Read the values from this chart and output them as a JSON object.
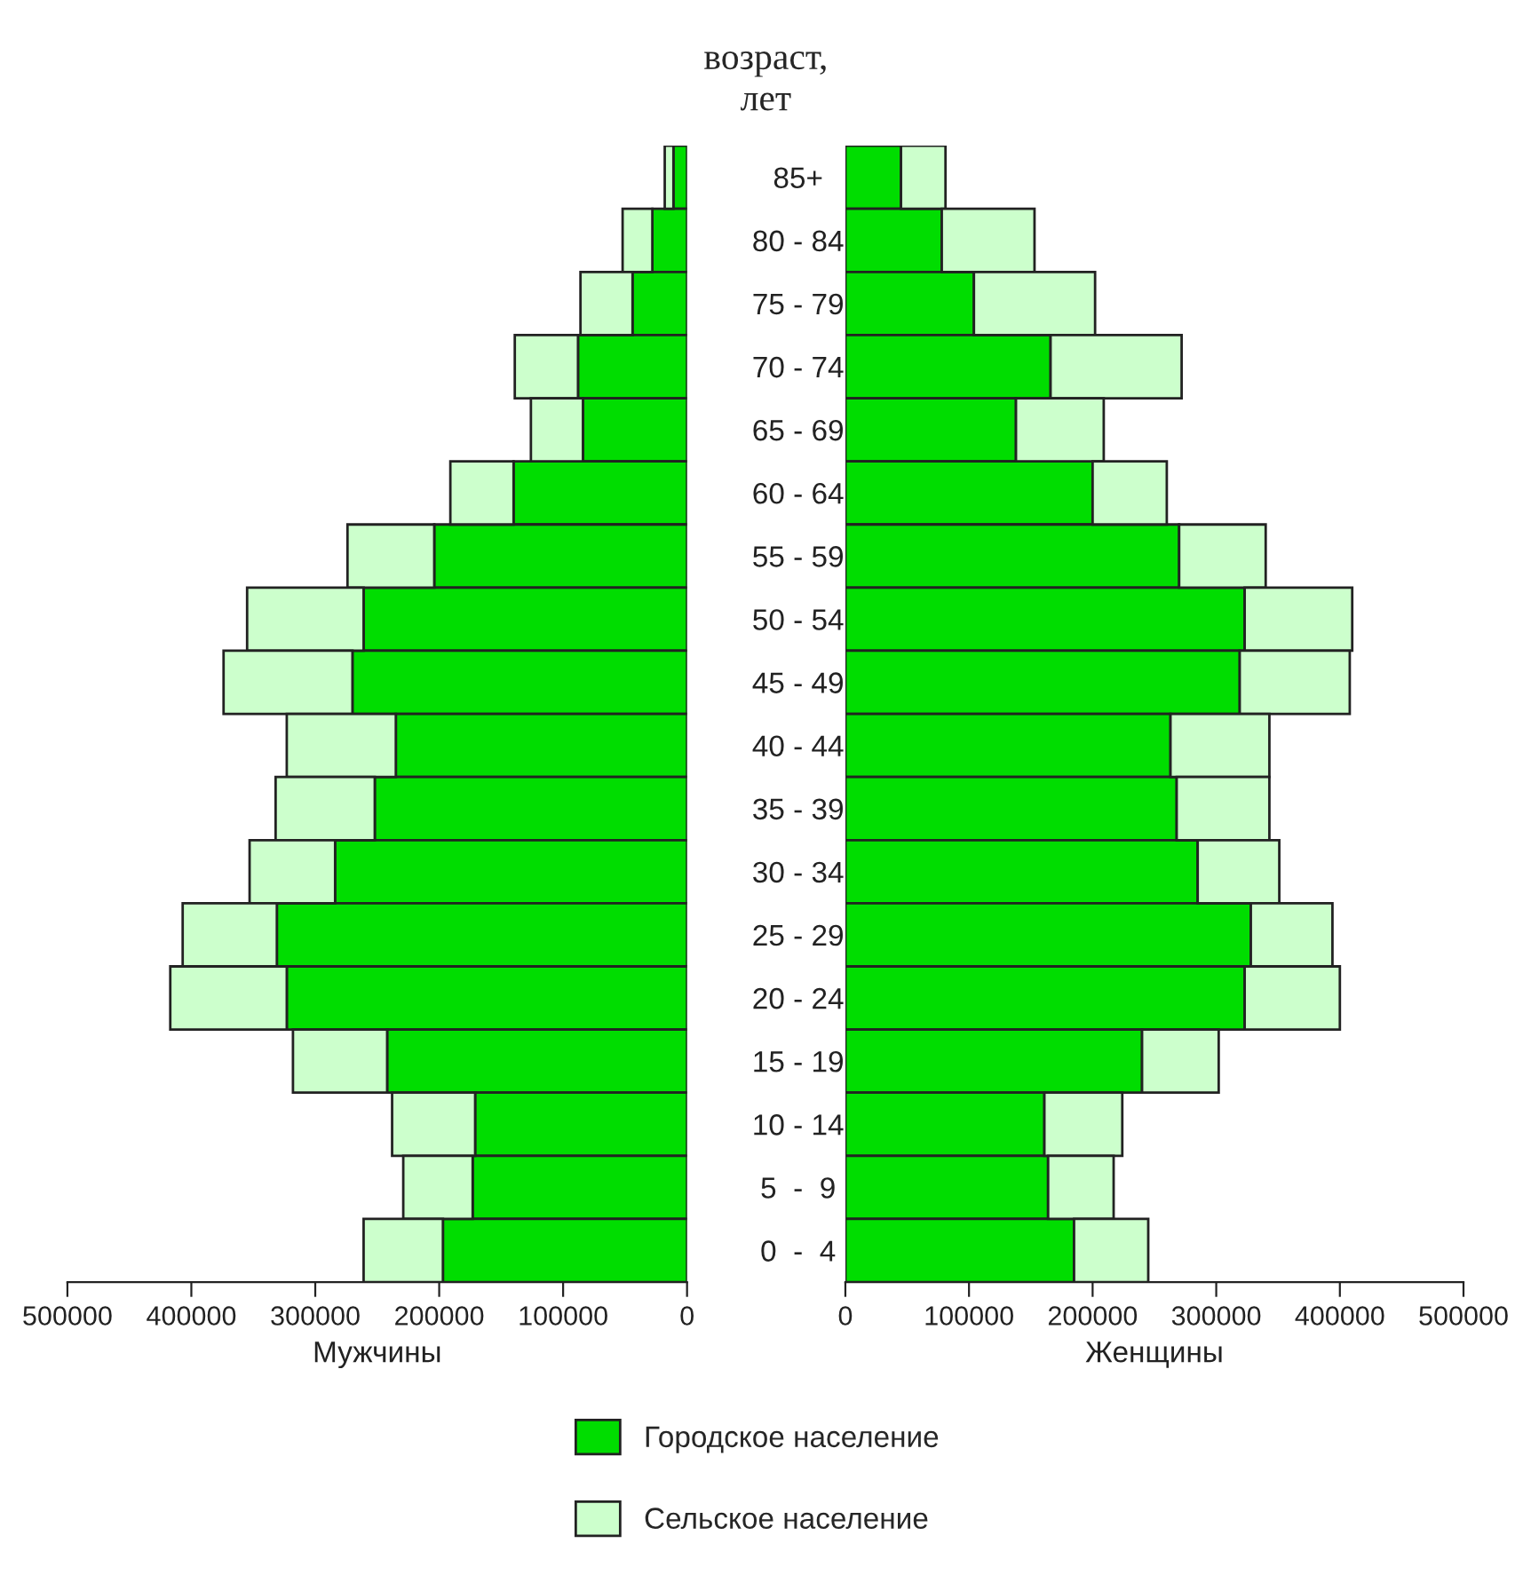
{
  "chart_data": [
    {
      "type": "bar",
      "orientation": "horizontal",
      "stacked": true,
      "title": "возраст,\nлет",
      "xlabel": "Мужчины",
      "legend": "bottom",
      "categories": [
        "85+",
        "80 - 84",
        "75 - 79",
        "70 - 74",
        "65 - 69",
        "60 - 64",
        "55 - 59",
        "50 - 54",
        "45 - 49",
        "40 - 44",
        "35 - 39",
        "30 - 34",
        "25 - 29",
        "20 - 24",
        "15 - 19",
        "10 - 14",
        "5  -  9",
        "0  -  4"
      ],
      "xlim": [
        500000,
        0
      ],
      "xticks": [
        500000,
        400000,
        300000,
        200000,
        100000,
        0
      ],
      "series": [
        {
          "name": "Городское население",
          "color": "#00dd00",
          "values": [
            11000,
            28000,
            44000,
            88000,
            84000,
            140000,
            204000,
            261000,
            270000,
            235000,
            252000,
            284000,
            331000,
            323000,
            242000,
            171000,
            173000,
            197000
          ]
        },
        {
          "name": "Сельское население",
          "color": "#ccffcc",
          "values": [
            7000,
            24000,
            42000,
            51000,
            42000,
            51000,
            70000,
            94000,
            104000,
            88000,
            80000,
            69000,
            76000,
            94000,
            76000,
            67000,
            56000,
            64000
          ]
        }
      ]
    },
    {
      "type": "bar",
      "orientation": "horizontal",
      "stacked": true,
      "xlabel": "Женщины",
      "categories": [
        null,
        null,
        null,
        null,
        null,
        null,
        null,
        null,
        null,
        null,
        null,
        null,
        null,
        null,
        null,
        null,
        null,
        null
      ],
      "xlim": [
        0,
        500000
      ],
      "xticks": [
        0,
        100000,
        200000,
        300000,
        400000,
        500000
      ],
      "series": [
        {
          "color": "#00dd00",
          "values": [
            45000,
            78000,
            104000,
            166000,
            138000,
            200000,
            270000,
            323000,
            319000,
            263000,
            268000,
            285000,
            328000,
            323000,
            240000,
            161000,
            164000,
            185000
          ]
        },
        {
          "color": "#ccffcc",
          "values": [
            36000,
            75000,
            98000,
            106000,
            71000,
            60000,
            70000,
            87000,
            89000,
            80000,
            75000,
            66000,
            66000,
            77000,
            62000,
            63000,
            53000,
            60000
          ]
        }
      ]
    }
  ]
}
